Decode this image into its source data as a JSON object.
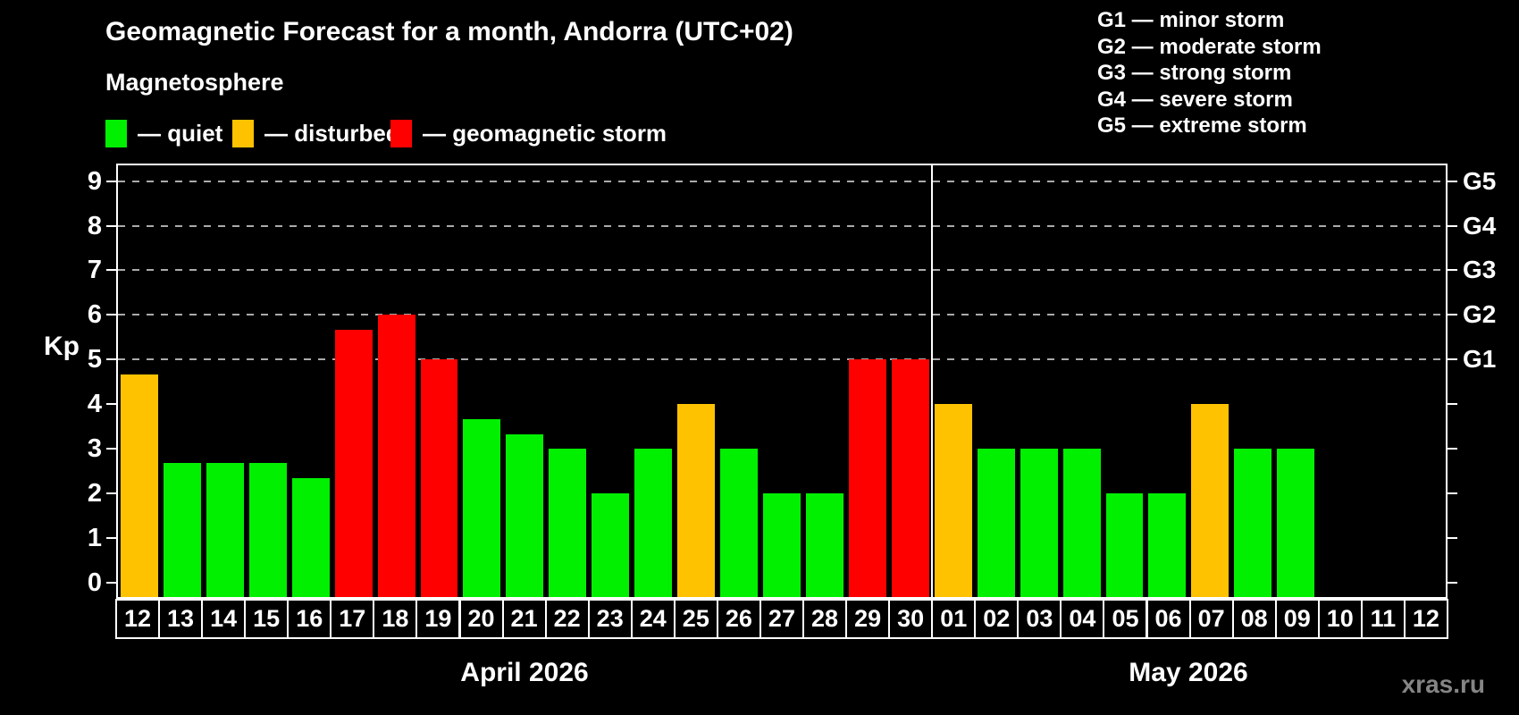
{
  "header": {
    "title": "Geomagnetic Forecast for a month, Andorra (UTC+02)",
    "subtitle": "Magnetosphere"
  },
  "legend": {
    "items": [
      {
        "key": "quiet",
        "label": "— quiet"
      },
      {
        "key": "disturbed",
        "label": "— disturbed"
      },
      {
        "key": "storm",
        "label": "— geomagnetic storm"
      }
    ]
  },
  "g_legend": {
    "items": [
      "G1 — minor storm",
      "G2 — moderate storm",
      "G3 — strong storm",
      "G4 — severe storm",
      "G5 — extreme storm"
    ]
  },
  "y_axis": {
    "label": "Kp",
    "ticks": [
      0,
      1,
      2,
      3,
      4,
      5,
      6,
      7,
      8,
      9
    ]
  },
  "right_axis": {
    "labels": [
      {
        "value": 9,
        "text": "G5"
      },
      {
        "value": 8,
        "text": "G4"
      },
      {
        "value": 7,
        "text": "G3"
      },
      {
        "value": 6,
        "text": "G2"
      },
      {
        "value": 5,
        "text": "G1"
      }
    ]
  },
  "colors": {
    "background": "#000000",
    "axis": "#ffffff",
    "grid": "#aaaaaa",
    "levels": {
      "quiet": "#00f000",
      "disturbed": "#ffc200",
      "storm": "#ff0000"
    },
    "watermark": "#858585"
  },
  "chart_data": {
    "type": "bar",
    "title": "Geomagnetic Forecast for a month, Andorra (UTC+02)",
    "xlabel": "",
    "ylabel": "Kp",
    "ylim": [
      0,
      9
    ],
    "yticks": [
      0,
      1,
      2,
      3,
      4,
      5,
      6,
      7,
      8,
      9
    ],
    "gridlines_at": [
      5,
      6,
      7,
      8,
      9
    ],
    "grid": "dashed",
    "legend_position": "top-left",
    "categories": [
      "Apr 12",
      "Apr 13",
      "Apr 14",
      "Apr 15",
      "Apr 16",
      "Apr 17",
      "Apr 18",
      "Apr 19",
      "Apr 20",
      "Apr 21",
      "Apr 22",
      "Apr 23",
      "Apr 24",
      "Apr 25",
      "Apr 26",
      "Apr 27",
      "Apr 28",
      "Apr 29",
      "Apr 30",
      "May 01",
      "May 02",
      "May 03",
      "May 04",
      "May 05",
      "May 06",
      "May 07",
      "May 08",
      "May 09",
      "May 10",
      "May 11",
      "May 12"
    ],
    "values": [
      4.67,
      2.67,
      2.67,
      2.67,
      2.33,
      5.67,
      6,
      5,
      3.67,
      3.33,
      3,
      2,
      3,
      4,
      3,
      2,
      2,
      5,
      5,
      4,
      3,
      3,
      3,
      2,
      2,
      4,
      3,
      3,
      null,
      null,
      null
    ],
    "levels": [
      "disturbed",
      "quiet",
      "quiet",
      "quiet",
      "quiet",
      "storm",
      "storm",
      "storm",
      "quiet",
      "quiet",
      "quiet",
      "quiet",
      "quiet",
      "disturbed",
      "quiet",
      "quiet",
      "quiet",
      "storm",
      "storm",
      "disturbed",
      "quiet",
      "quiet",
      "quiet",
      "quiet",
      "quiet",
      "disturbed",
      "quiet",
      "quiet",
      null,
      null,
      null
    ]
  },
  "calendar": {
    "months": [
      {
        "label": "April 2026",
        "days": [
          "12",
          "13",
          "14",
          "15",
          "16",
          "17",
          "18",
          "19",
          "20",
          "21",
          "22",
          "23",
          "24",
          "25",
          "26",
          "27",
          "28",
          "29",
          "30"
        ]
      },
      {
        "label": "May 2026",
        "days": [
          "01",
          "02",
          "03",
          "04",
          "05",
          "06",
          "07",
          "08",
          "09",
          "10",
          "11",
          "12"
        ]
      }
    ]
  },
  "watermark": {
    "text": "xras.ru"
  }
}
